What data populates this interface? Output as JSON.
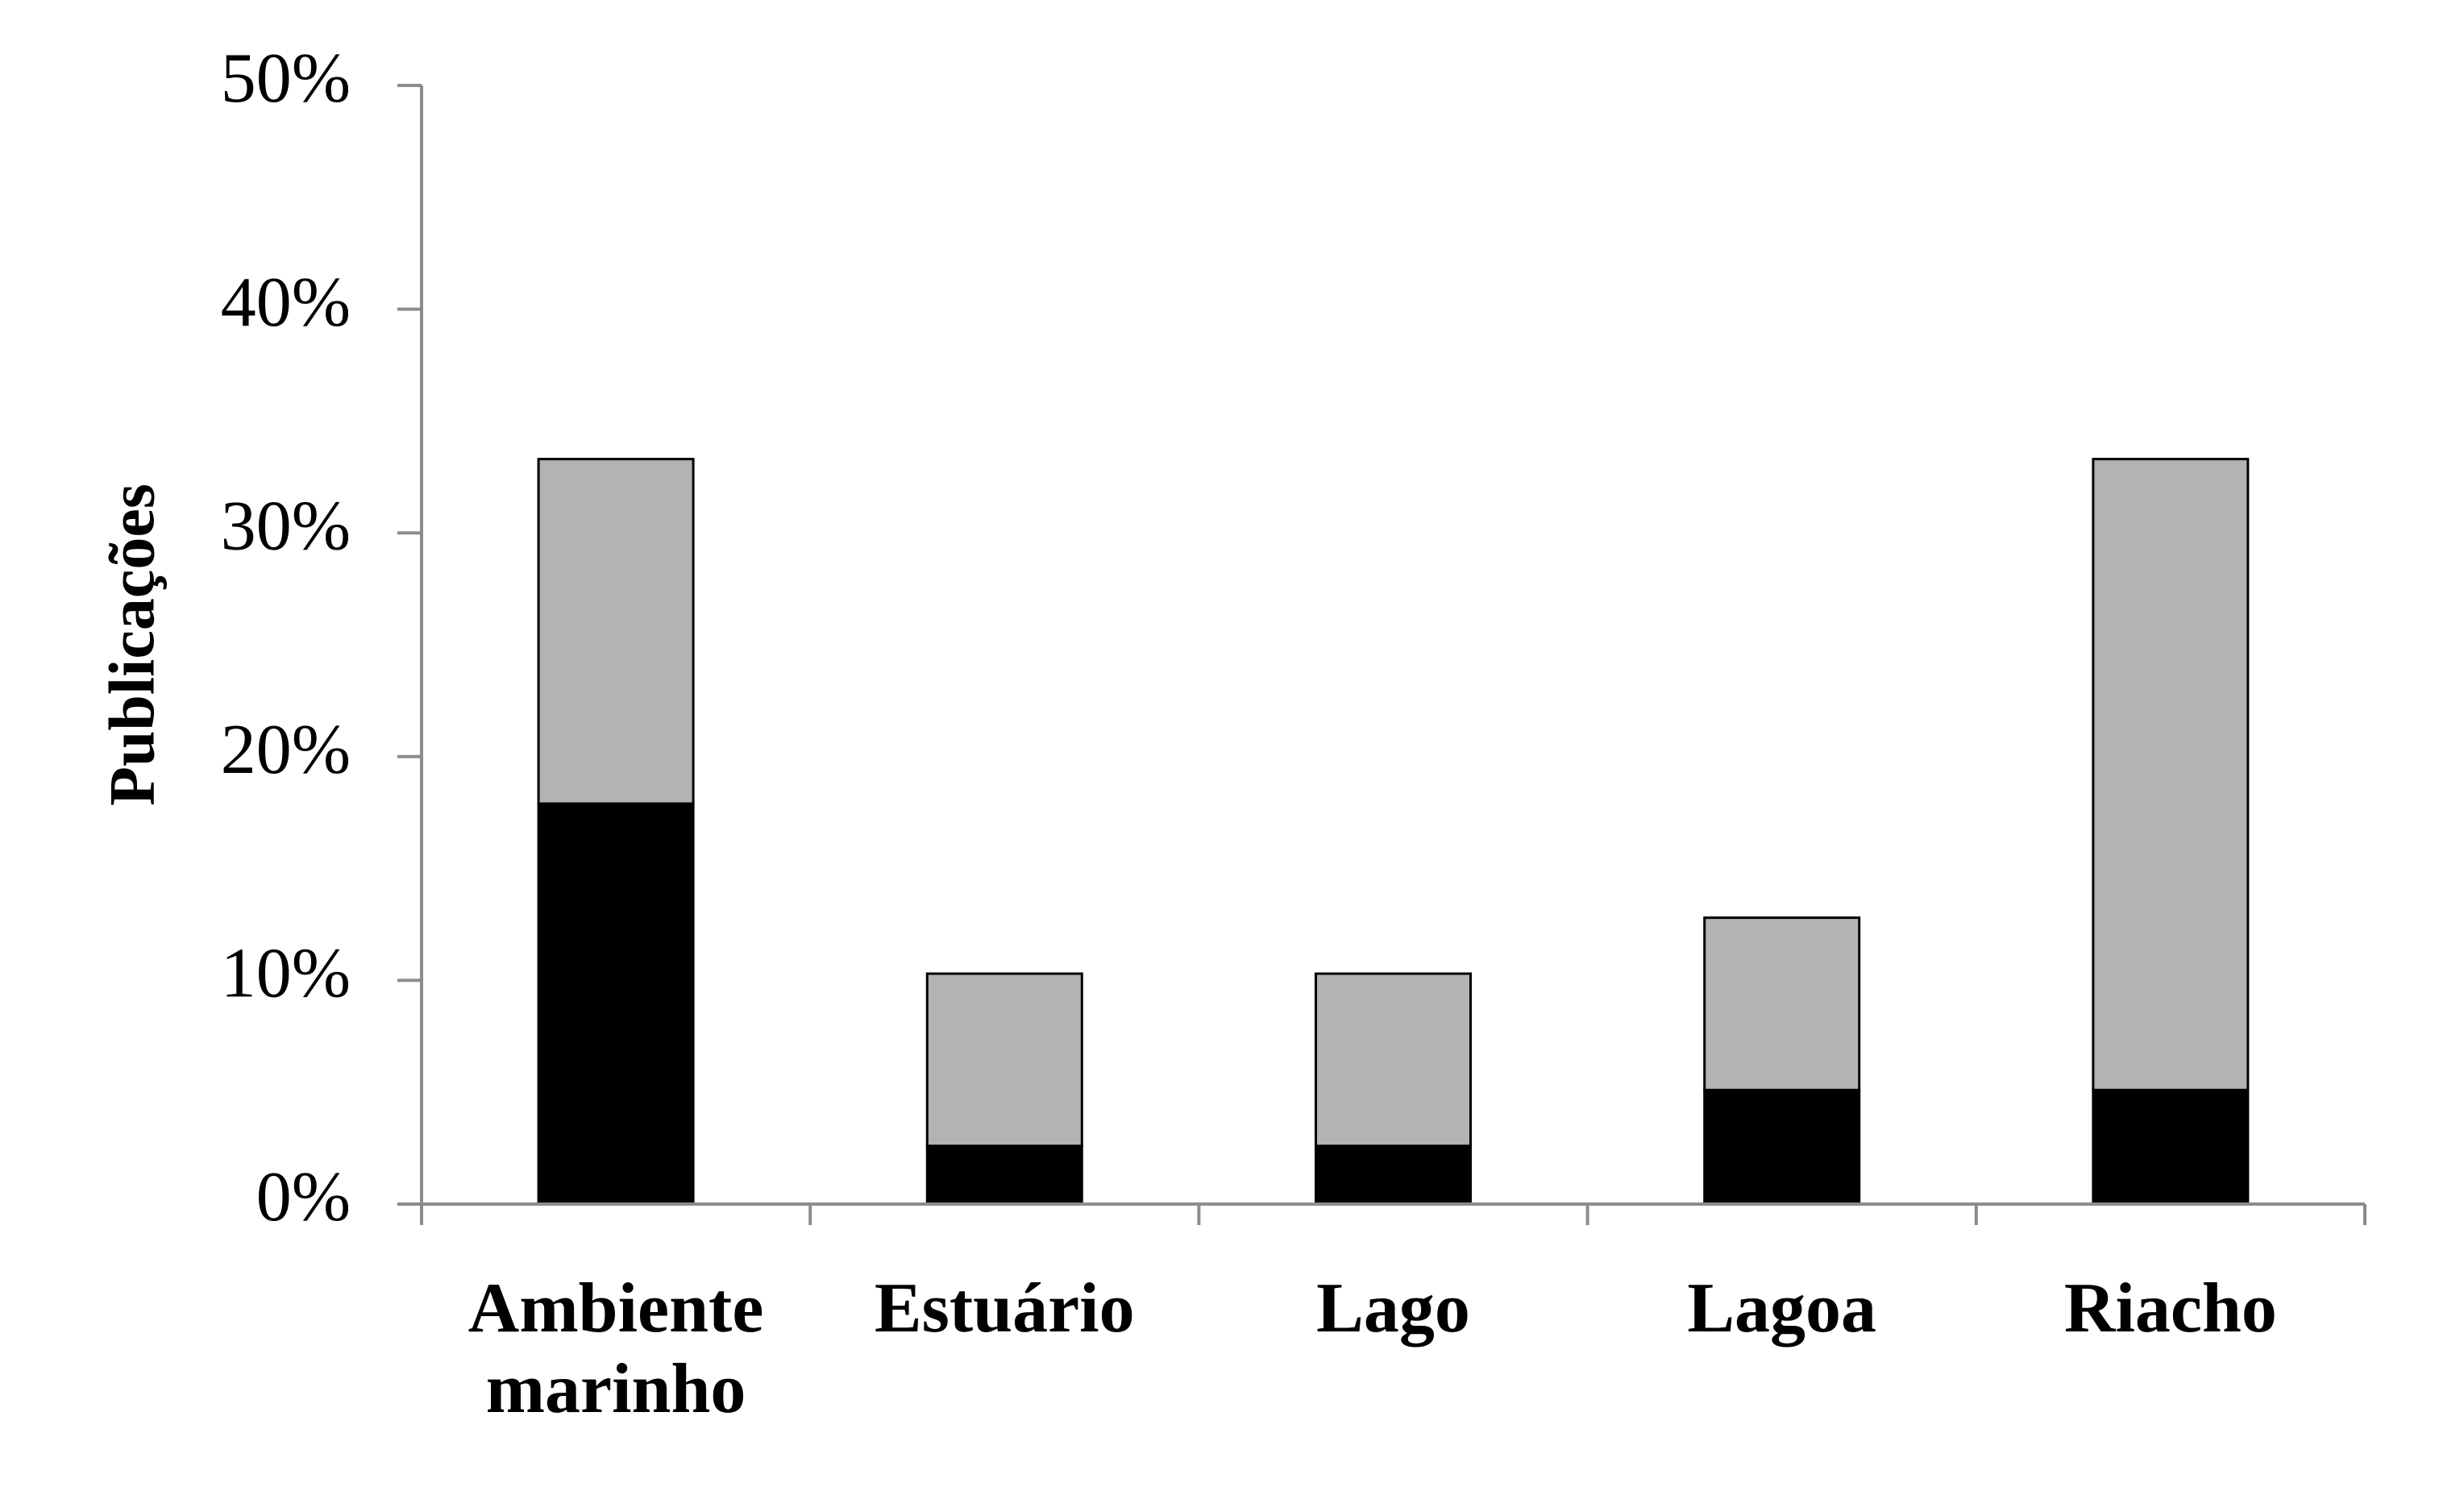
{
  "chart_data": {
    "type": "stacked_bar",
    "y_label": "Publicações",
    "categories": [
      "Ambiente marinho",
      "Estuário",
      "Lago",
      "Lagoa",
      "Riacho"
    ],
    "series": [
      {
        "color": "#000000",
        "values": [
          17.9,
          2.6,
          2.6,
          5.1,
          5.1
        ]
      },
      {
        "color": "#b3b3b3",
        "values": [
          15.4,
          7.7,
          7.7,
          7.7,
          28.2
        ]
      }
    ],
    "ylim": [
      0,
      50
    ],
    "yticks": [
      {
        "value": 0,
        "label": "0%"
      },
      {
        "value": 10,
        "label": "10%"
      },
      {
        "value": 20,
        "label": "20%"
      },
      {
        "value": 30,
        "label": "30%"
      },
      {
        "value": 40,
        "label": "40%"
      },
      {
        "value": 50,
        "label": "50%"
      }
    ],
    "grid": false
  }
}
